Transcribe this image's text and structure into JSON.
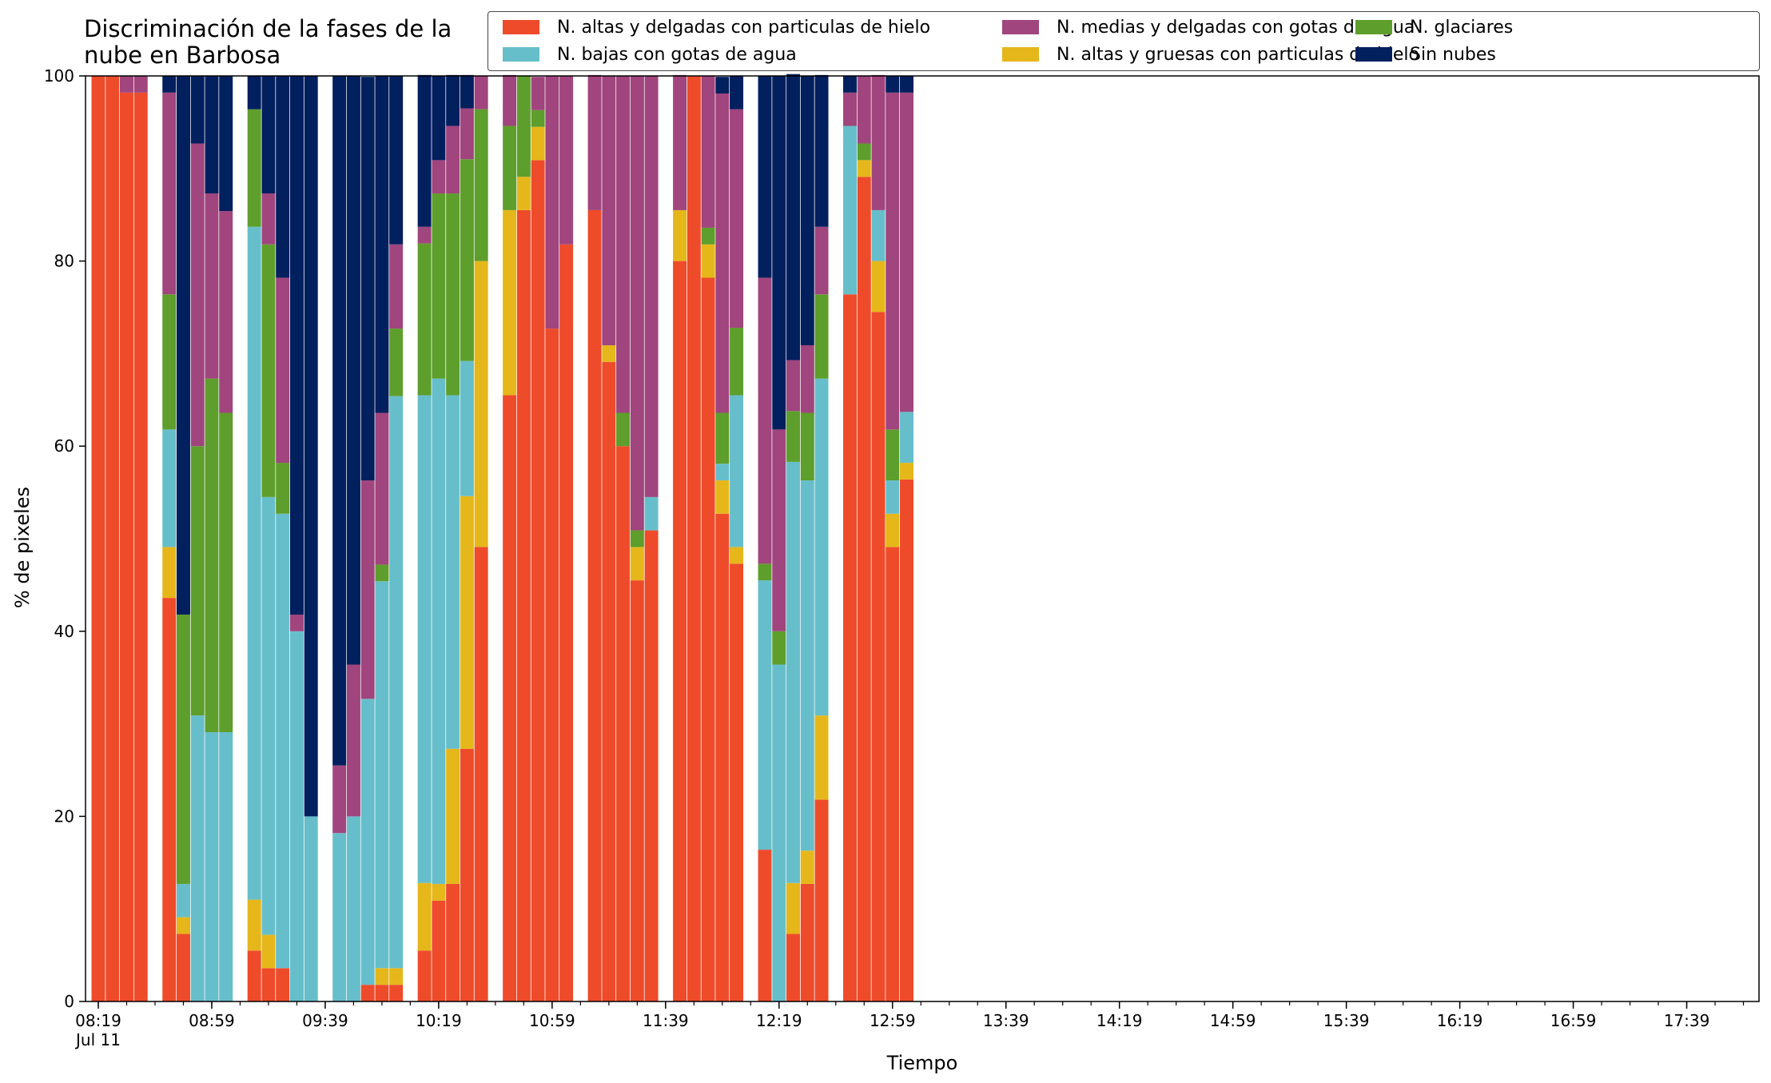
{
  "chart_data": {
    "type": "bar",
    "stacked": true,
    "title": "Discriminación de la fases de la\nnube en Barbosa",
    "xlabel": "Tiempo",
    "ylabel": "% de pixeles",
    "ylim": [
      0,
      100
    ],
    "yticks": [
      0,
      20,
      40,
      60,
      80,
      100
    ],
    "grid": false,
    "legend_position": "top-right",
    "x_major_ticks": [
      {
        "time": "08:19",
        "label": "08:19",
        "sublabel": "Jul 11"
      },
      {
        "time": "08:59",
        "label": "08:59"
      },
      {
        "time": "09:39",
        "label": "09:39"
      },
      {
        "time": "10:19",
        "label": "10:19"
      },
      {
        "time": "10:59",
        "label": "10:59"
      },
      {
        "time": "11:39",
        "label": "11:39"
      },
      {
        "time": "12:19",
        "label": "12:19"
      },
      {
        "time": "12:59",
        "label": "12:59"
      },
      {
        "time": "13:39",
        "label": "13:39"
      },
      {
        "time": "14:19",
        "label": "14:19"
      },
      {
        "time": "14:59",
        "label": "14:59"
      },
      {
        "time": "15:39",
        "label": "15:39"
      },
      {
        "time": "16:19",
        "label": "16:19"
      },
      {
        "time": "16:59",
        "label": "16:59"
      },
      {
        "time": "17:39",
        "label": "17:39"
      }
    ],
    "x_range": [
      "08:19",
      "18:09"
    ],
    "series": [
      {
        "name": "N. altas y delgadas con particulas de hielo",
        "color": "#EE4B2B"
      },
      {
        "name": "N. altas y gruesas con particulas de hielo",
        "color": "#E5B71A"
      },
      {
        "name": "N. bajas con gotas de agua",
        "color": "#67BECB"
      },
      {
        "name": "N. glaciares",
        "color": "#5E9E2C"
      },
      {
        "name": "N. medias y delgadas con gotas de agua",
        "color": "#A0457D"
      },
      {
        "name": "Sin nubes",
        "color": "#021F5E"
      }
    ],
    "legend_order": [
      0,
      2,
      4,
      1,
      3,
      5
    ],
    "bars": [
      {
        "x": "08:19",
        "values": [
          100,
          0,
          0,
          0,
          0,
          0
        ]
      },
      {
        "x": "08:24",
        "values": [
          100,
          0,
          0,
          0,
          0,
          0
        ]
      },
      {
        "x": "08:29",
        "values": [
          98.2,
          0,
          0,
          0,
          1.8,
          0
        ]
      },
      {
        "x": "08:34",
        "values": [
          98.2,
          0,
          0,
          0,
          1.8,
          0
        ]
      },
      {
        "x": "08:44",
        "values": [
          43.6,
          5.5,
          12.7,
          14.6,
          21.8,
          1.8
        ]
      },
      {
        "x": "08:49",
        "values": [
          7.3,
          1.8,
          3.6,
          29.1,
          0,
          58.2
        ]
      },
      {
        "x": "08:54",
        "values": [
          0,
          0,
          30.9,
          29.1,
          32.7,
          7.3
        ]
      },
      {
        "x": "08:59",
        "values": [
          0,
          0,
          29.1,
          38.2,
          20.0,
          12.7
        ]
      },
      {
        "x": "09:04",
        "values": [
          0,
          0,
          29.1,
          34.5,
          21.8,
          14.6
        ]
      },
      {
        "x": "09:14",
        "values": [
          5.5,
          5.5,
          72.7,
          12.7,
          0,
          3.6
        ]
      },
      {
        "x": "09:19",
        "values": [
          3.6,
          3.6,
          47.3,
          27.3,
          5.5,
          12.7
        ]
      },
      {
        "x": "09:24",
        "values": [
          3.6,
          0,
          49.1,
          5.5,
          20.0,
          21.8
        ]
      },
      {
        "x": "09:29",
        "values": [
          0,
          0,
          40.0,
          0,
          1.8,
          58.2
        ]
      },
      {
        "x": "09:34",
        "values": [
          0,
          0,
          20.0,
          0,
          0,
          80.0
        ]
      },
      {
        "x": "09:44",
        "values": [
          0,
          0,
          18.2,
          0,
          7.3,
          74.5
        ]
      },
      {
        "x": "09:49",
        "values": [
          0,
          0,
          20.0,
          0,
          16.4,
          63.6
        ]
      },
      {
        "x": "09:54",
        "values": [
          1.8,
          0,
          30.9,
          0,
          23.6,
          43.6
        ]
      },
      {
        "x": "09:59",
        "values": [
          1.8,
          1.8,
          41.8,
          1.8,
          16.4,
          36.4
        ]
      },
      {
        "x": "10:04",
        "values": [
          1.8,
          1.8,
          61.8,
          7.3,
          9.1,
          18.2
        ]
      },
      {
        "x": "10:14",
        "values": [
          5.5,
          7.3,
          52.7,
          16.4,
          1.8,
          16.4
        ]
      },
      {
        "x": "10:19",
        "values": [
          10.9,
          1.8,
          54.6,
          20.0,
          3.6,
          9.1
        ]
      },
      {
        "x": "10:24",
        "values": [
          12.7,
          14.6,
          38.2,
          21.8,
          7.3,
          5.5
        ]
      },
      {
        "x": "10:29",
        "values": [
          27.3,
          27.3,
          14.6,
          21.8,
          5.5,
          3.6
        ]
      },
      {
        "x": "10:34",
        "values": [
          49.1,
          30.9,
          0,
          16.4,
          3.6,
          0
        ]
      },
      {
        "x": "10:44",
        "values": [
          65.5,
          20.0,
          0,
          9.1,
          5.5,
          0
        ]
      },
      {
        "x": "10:49",
        "values": [
          85.5,
          3.6,
          0,
          10.9,
          0,
          0
        ]
      },
      {
        "x": "10:54",
        "values": [
          90.9,
          3.6,
          0,
          1.8,
          3.6,
          0
        ]
      },
      {
        "x": "10:59",
        "values": [
          72.7,
          0,
          0,
          0,
          27.3,
          0
        ]
      },
      {
        "x": "11:04",
        "values": [
          81.8,
          0,
          0,
          0,
          18.2,
          0
        ]
      },
      {
        "x": "11:14",
        "values": [
          85.5,
          0,
          0,
          0,
          14.6,
          0
        ]
      },
      {
        "x": "11:19",
        "values": [
          69.1,
          1.8,
          0,
          0,
          29.1,
          0
        ]
      },
      {
        "x": "11:24",
        "values": [
          60.0,
          0,
          0,
          3.6,
          36.4,
          0
        ]
      },
      {
        "x": "11:29",
        "values": [
          45.5,
          3.6,
          0,
          1.8,
          49.1,
          0
        ]
      },
      {
        "x": "11:34",
        "values": [
          50.9,
          0,
          3.6,
          0,
          45.5,
          0
        ]
      },
      {
        "x": "11:44",
        "values": [
          80.0,
          5.5,
          0,
          0,
          14.6,
          0
        ]
      },
      {
        "x": "11:49",
        "values": [
          100,
          0,
          0,
          0,
          0,
          0
        ]
      },
      {
        "x": "11:54",
        "values": [
          78.2,
          3.6,
          0,
          1.8,
          16.4,
          0
        ]
      },
      {
        "x": "11:59",
        "values": [
          52.7,
          3.6,
          1.8,
          5.5,
          34.5,
          1.8
        ]
      },
      {
        "x": "12:04",
        "values": [
          47.3,
          1.8,
          16.4,
          7.3,
          23.6,
          3.6
        ]
      },
      {
        "x": "12:14",
        "values": [
          16.4,
          0,
          29.1,
          1.8,
          30.9,
          21.8
        ]
      },
      {
        "x": "12:19",
        "values": [
          0,
          0,
          36.4,
          3.6,
          21.8,
          38.2
        ]
      },
      {
        "x": "12:24",
        "values": [
          7.3,
          5.5,
          45.5,
          5.5,
          5.5,
          30.9
        ]
      },
      {
        "x": "12:29",
        "values": [
          12.7,
          3.6,
          40.0,
          7.3,
          7.3,
          29.1
        ]
      },
      {
        "x": "12:34",
        "values": [
          21.8,
          9.1,
          36.4,
          9.1,
          7.3,
          16.4
        ]
      },
      {
        "x": "12:44",
        "values": [
          76.4,
          0,
          18.2,
          0,
          3.6,
          1.8
        ]
      },
      {
        "x": "12:49",
        "values": [
          89.1,
          1.8,
          0,
          1.8,
          7.3,
          0
        ]
      },
      {
        "x": "12:54",
        "values": [
          74.5,
          5.5,
          5.5,
          0,
          14.6,
          0
        ]
      },
      {
        "x": "12:59",
        "values": [
          49.1,
          3.6,
          3.6,
          5.5,
          36.4,
          1.8
        ]
      },
      {
        "x": "13:04",
        "values": [
          56.4,
          1.8,
          5.5,
          0,
          34.5,
          1.8
        ]
      }
    ]
  }
}
